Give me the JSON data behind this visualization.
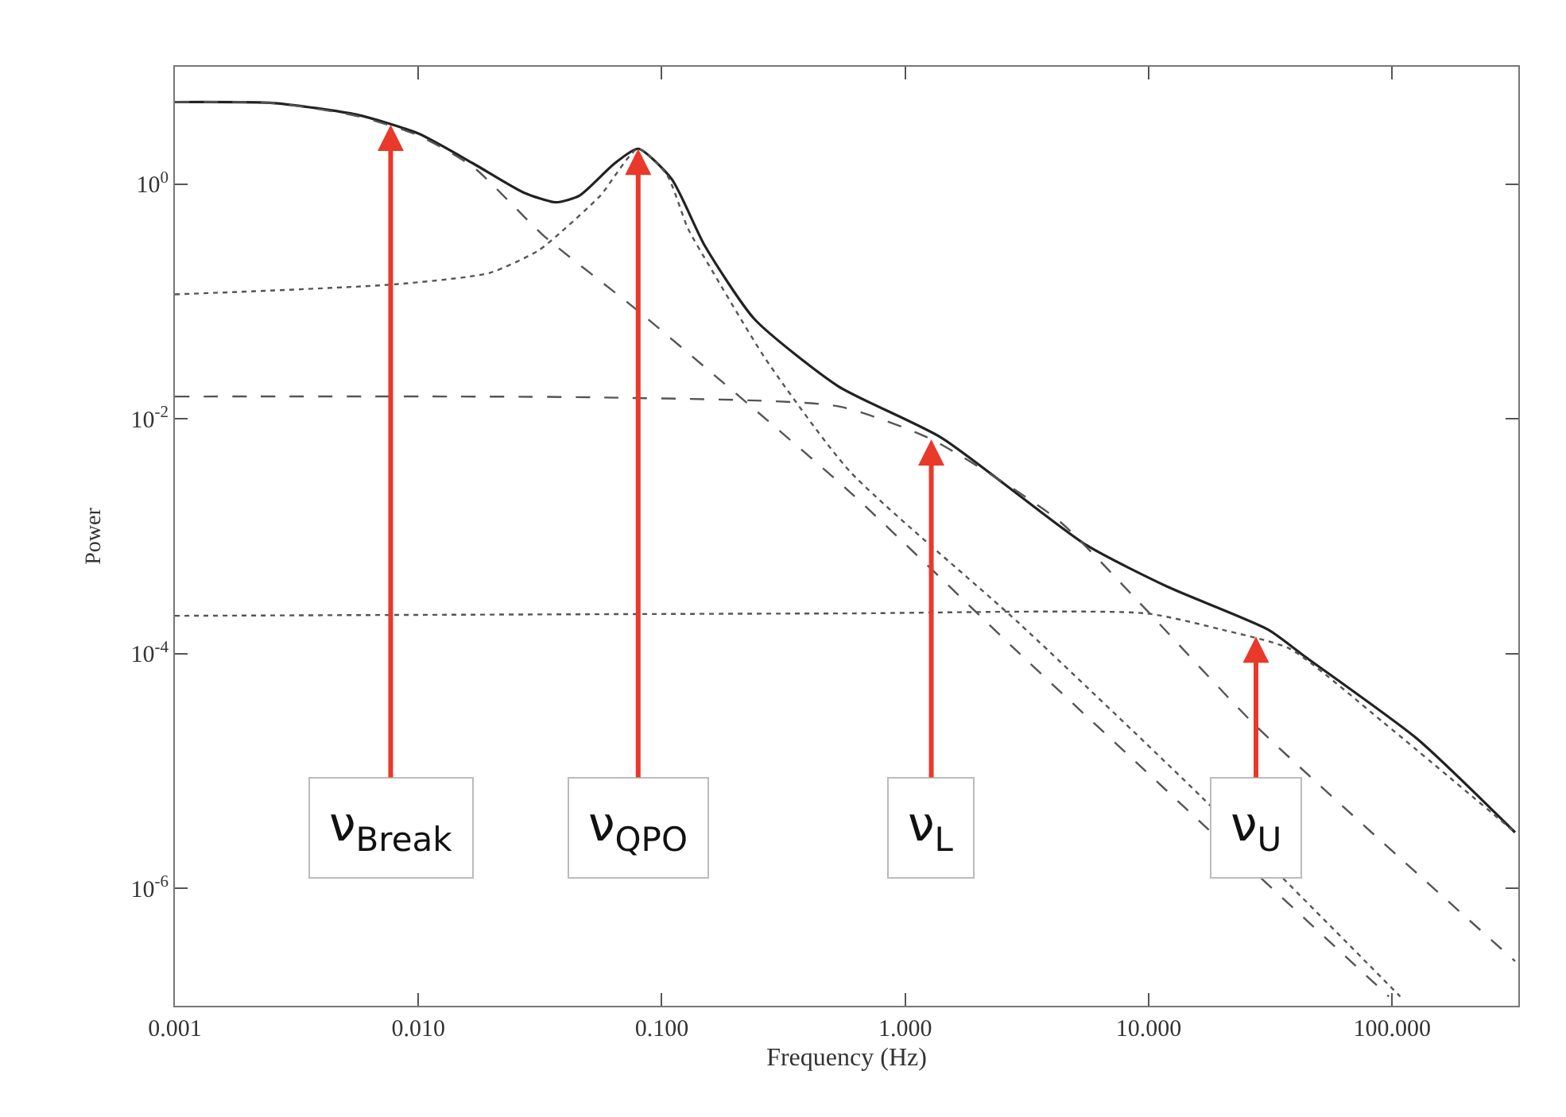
{
  "chart_data": {
    "type": "line",
    "xlabel": "Frequency (Hz)",
    "ylabel": "Power",
    "log": "xy",
    "xlim": [
      0.001,
      330
    ],
    "ylim": [
      1e-07,
      10
    ],
    "xticks": [
      {
        "value": 0.001,
        "label": "0.001"
      },
      {
        "value": 0.01,
        "label": "0.010"
      },
      {
        "value": 0.1,
        "label": "0.100"
      },
      {
        "value": 1,
        "label": "1.000"
      },
      {
        "value": 10,
        "label": "10.000"
      },
      {
        "value": 100,
        "label": "100.000"
      }
    ],
    "yticks": [
      {
        "value": 1,
        "label": "10$^{0}$"
      },
      {
        "value": 0.01,
        "label": "10$^{-2}$"
      },
      {
        "value": 0.0001,
        "label": "10$^{-4}$"
      },
      {
        "value": 1e-06,
        "label": "10$^{-6}$"
      }
    ],
    "series": [
      {
        "color": "#222222",
        "line_style": "solid",
        "x": [
          0.001,
          0.00256,
          0.0056,
          0.01,
          0.0168,
          0.027,
          0.0367,
          0.046,
          0.064,
          0.08,
          0.11,
          0.15,
          0.24,
          0.53,
          1.41,
          5.5,
          12,
          31,
          44,
          126,
          320
        ],
        "values": [
          5.0,
          4.9,
          3.9,
          2.7,
          1.5,
          0.85,
          0.7,
          0.8,
          1.5,
          2.0,
          1.1,
          0.3,
          0.071,
          0.019,
          0.0069,
          0.00085,
          0.00037,
          0.00016,
          9.4e-05,
          1.9e-05,
          3e-06
        ]
      },
      {
        "color": "#555555",
        "line_style": "dashed",
        "x": [
          0.001,
          0.00256,
          0.0056,
          0.01,
          0.0168,
          0.0329,
          0.08,
          0.59,
          2.95,
          16.5,
          97
        ],
        "values": [
          5.0,
          4.9,
          3.8,
          2.6,
          1.4,
          0.36,
          0.083,
          0.0024,
          0.0001,
          3.6e-06,
          1.2e-07
        ]
      },
      {
        "color": "#555555",
        "line_style": "dotted",
        "x": [
          0.001,
          0.008,
          0.0196,
          0.031,
          0.038,
          0.056,
          0.08,
          0.105,
          0.128,
          0.157,
          0.268,
          0.59,
          2.95,
          16.5,
          108
        ],
        "values": [
          0.115,
          0.14,
          0.175,
          0.27,
          0.38,
          0.8,
          2.0,
          1.2,
          0.42,
          0.2,
          0.032,
          0.0036,
          0.00018,
          6e-06,
          1.2e-07
        ]
      },
      {
        "color": "#555555",
        "line_style": "dashed",
        "x": [
          0.001,
          0.059,
          0.53,
          1.28,
          4.2,
          9.2,
          27.7,
          320
        ],
        "values": [
          0.0155,
          0.0152,
          0.0128,
          0.0067,
          0.0014,
          0.00027,
          2.4e-05,
          2.4e-07
        ]
      },
      {
        "color": "#555555",
        "line_style": "dotted",
        "x": [
          0.001,
          0.53,
          9.8,
          20,
          38,
          92,
          320
        ],
        "values": [
          0.00021,
          0.00022,
          0.00022,
          0.00016,
          0.00011,
          2.6e-05,
          3e-06
        ]
      }
    ],
    "annotations": [
      {
        "text": "ν$_{Break}$",
        "x": 0.0077,
        "y": 3.2
      },
      {
        "text": "ν$_{QPO}$",
        "x": 0.08,
        "y": 2.0
      },
      {
        "text": "ν$_{L}$",
        "x": 1.28,
        "y": 0.0067
      },
      {
        "text": "ν$_{U}$",
        "x": 27.6,
        "y": 0.00014
      }
    ]
  }
}
